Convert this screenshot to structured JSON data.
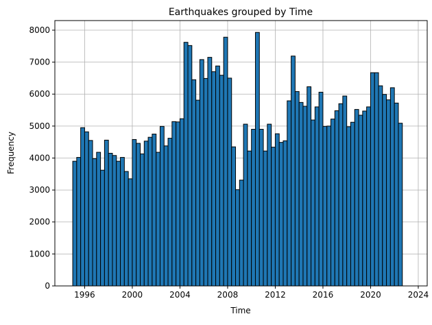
{
  "chart_data": {
    "type": "bar",
    "title": "Earthquakes grouped by Time",
    "xlabel": "Time",
    "ylabel": "Frequency",
    "xlim": [
      1993.5,
      2024.75
    ],
    "ylim": [
      0,
      8300
    ],
    "grid": true,
    "bar_color": "#1f77b4",
    "edge_color": "#000000",
    "bin_start": 1995.0,
    "bin_width": 0.3333,
    "x_ticks": [
      1996,
      2000,
      2004,
      2008,
      2012,
      2016,
      2020,
      2024
    ],
    "x_tick_labels": [
      "1996",
      "2000",
      "2004",
      "2008",
      "2012",
      "2016",
      "2020",
      "2024"
    ],
    "y_ticks": [
      0,
      1000,
      2000,
      3000,
      4000,
      5000,
      6000,
      7000,
      8000
    ],
    "y_tick_labels": [
      "0",
      "1000",
      "2000",
      "3000",
      "4000",
      "5000",
      "6000",
      "7000",
      "8000"
    ],
    "values": [
      3900,
      4020,
      4950,
      4820,
      4550,
      3980,
      4180,
      3620,
      4560,
      4150,
      4080,
      3900,
      4020,
      3580,
      3350,
      4580,
      4460,
      4130,
      4530,
      4650,
      4750,
      4180,
      4990,
      4380,
      4620,
      5140,
      5130,
      5230,
      7620,
      7520,
      6450,
      5810,
      7080,
      6490,
      7150,
      6700,
      6880,
      6590,
      7780,
      6500,
      4350,
      3010,
      3310,
      5060,
      4220,
      4900,
      7930,
      4900,
      4220,
      5060,
      4340,
      4760,
      4490,
      4540,
      5790,
      7190,
      6080,
      5740,
      5620,
      6230,
      5190,
      5600,
      6060,
      4990,
      5000,
      5220,
      5480,
      5700,
      5940,
      4980,
      5120,
      5520,
      5340,
      5470,
      5600,
      6670,
      6670,
      6260,
      5990,
      5820,
      6200,
      5720,
      5090
    ]
  }
}
